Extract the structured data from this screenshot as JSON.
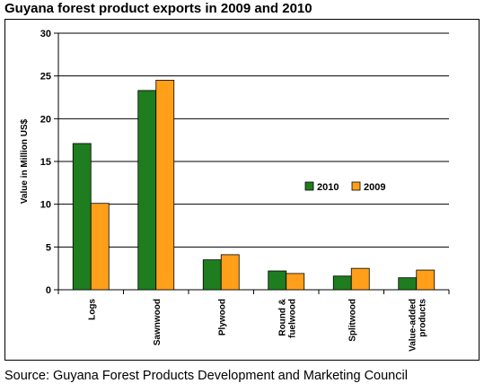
{
  "title": "Guyana forest product exports in 2009 and 2010",
  "source": "Source: Guyana Forest Products Development and Marketing Council",
  "chart_data": {
    "type": "bar",
    "categories": [
      [
        "Logs"
      ],
      [
        "Sawnwood"
      ],
      [
        "Plywood"
      ],
      [
        "Round &",
        "fuelwood"
      ],
      [
        "Splitwood"
      ],
      [
        "Value-added",
        "products"
      ]
    ],
    "series": [
      {
        "name": "2010",
        "values": [
          17.1,
          23.3,
          3.5,
          2.2,
          1.6,
          1.4
        ],
        "color": "#1e7d1e"
      },
      {
        "name": "2009",
        "values": [
          10.1,
          24.5,
          4.1,
          1.9,
          2.5,
          2.3
        ],
        "color": "#ff9f1a"
      }
    ],
    "ylabel": "Value in Million US$",
    "ylim": [
      0,
      30
    ],
    "yticks": [
      0,
      5,
      10,
      15,
      20,
      25,
      30
    ],
    "grid": true,
    "legend_position": "right-middle"
  }
}
